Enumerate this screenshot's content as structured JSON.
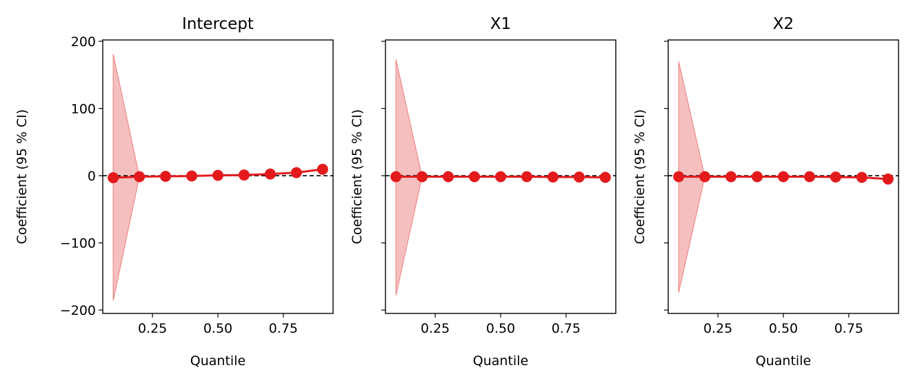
{
  "figure": {
    "xlabel": "Quantile",
    "ylabel": "Coefficient (95 % CI)",
    "colors": {
      "line": "#e31a1c",
      "band": "#ee8a8a",
      "zero": "#000000"
    }
  },
  "chart_data": [
    {
      "type": "line",
      "title": "Intercept",
      "xlabel": "Quantile",
      "ylabel": "Coefficient (95 % CI)",
      "x": [
        0.1,
        0.2,
        0.3,
        0.4,
        0.5,
        0.6,
        0.7,
        0.8,
        0.9
      ],
      "coef": [
        -3,
        -1.5,
        -1,
        -0.5,
        0.5,
        1,
        2.5,
        4.5,
        9.5
      ],
      "ci_lower": [
        -186,
        -1.5,
        -1,
        -0.5,
        0.5,
        1,
        2.5,
        4.5,
        9.5
      ],
      "ci_upper": [
        181,
        -1.5,
        -1,
        -0.5,
        0.5,
        1,
        2.5,
        4.5,
        9.5
      ],
      "xlim": [
        0.06,
        0.94
      ],
      "ylim": [
        -205,
        202
      ],
      "xticks": [
        0.25,
        0.5,
        0.75
      ],
      "xtick_labels": [
        "0.25",
        "0.50",
        "0.75"
      ],
      "yticks": [
        -200,
        -100,
        0,
        100,
        200
      ],
      "ytick_labels": [
        "−200",
        "−100",
        "0",
        "100",
        "200"
      ],
      "show_ytick_labels": true,
      "show_ylabel": true,
      "zero_line": 0
    },
    {
      "type": "line",
      "title": "X1",
      "xlabel": "Quantile",
      "ylabel": "Coefficient (95 % CI)",
      "x": [
        0.1,
        0.2,
        0.3,
        0.4,
        0.5,
        0.6,
        0.7,
        0.8,
        0.9
      ],
      "coef": [
        -1.5,
        -1.5,
        -1.5,
        -1.5,
        -1.5,
        -1.5,
        -2,
        -2,
        -2.5
      ],
      "ci_lower": [
        -178,
        -1.5,
        -1.5,
        -1.5,
        -1.5,
        -1.5,
        -2,
        -2,
        -2.5
      ],
      "ci_upper": [
        173,
        -1.5,
        -1.5,
        -1.5,
        -1.5,
        -1.5,
        -2,
        -2,
        -2.5
      ],
      "xlim": [
        0.06,
        0.94
      ],
      "ylim": [
        -205,
        202
      ],
      "xticks": [
        0.25,
        0.5,
        0.75
      ],
      "xtick_labels": [
        "0.25",
        "0.50",
        "0.75"
      ],
      "yticks": [
        -200,
        -100,
        0,
        100,
        200
      ],
      "ytick_labels": [
        "",
        "",
        "",
        "",
        ""
      ],
      "show_ytick_labels": false,
      "show_ylabel": true,
      "zero_line": 0
    },
    {
      "type": "line",
      "title": "X2",
      "xlabel": "Quantile",
      "ylabel": "Coefficient (95 % CI)",
      "x": [
        0.1,
        0.2,
        0.3,
        0.4,
        0.5,
        0.6,
        0.7,
        0.8,
        0.9
      ],
      "coef": [
        -1.5,
        -1.5,
        -1.5,
        -1.5,
        -1.5,
        -1.5,
        -2,
        -2.5,
        -5
      ],
      "ci_lower": [
        -174,
        -1.5,
        -1.5,
        -1.5,
        -1.5,
        -1.5,
        -2,
        -2.5,
        -5
      ],
      "ci_upper": [
        170,
        -1.5,
        -1.5,
        -1.5,
        -1.5,
        -1.5,
        -2,
        -2.5,
        -5
      ],
      "xlim": [
        0.06,
        0.94
      ],
      "ylim": [
        -205,
        202
      ],
      "xticks": [
        0.25,
        0.5,
        0.75
      ],
      "xtick_labels": [
        "0.25",
        "0.50",
        "0.75"
      ],
      "yticks": [
        -200,
        -100,
        0,
        100,
        200
      ],
      "ytick_labels": [
        "",
        "",
        "",
        "",
        ""
      ],
      "show_ytick_labels": false,
      "show_ylabel": true,
      "zero_line": 0
    }
  ]
}
